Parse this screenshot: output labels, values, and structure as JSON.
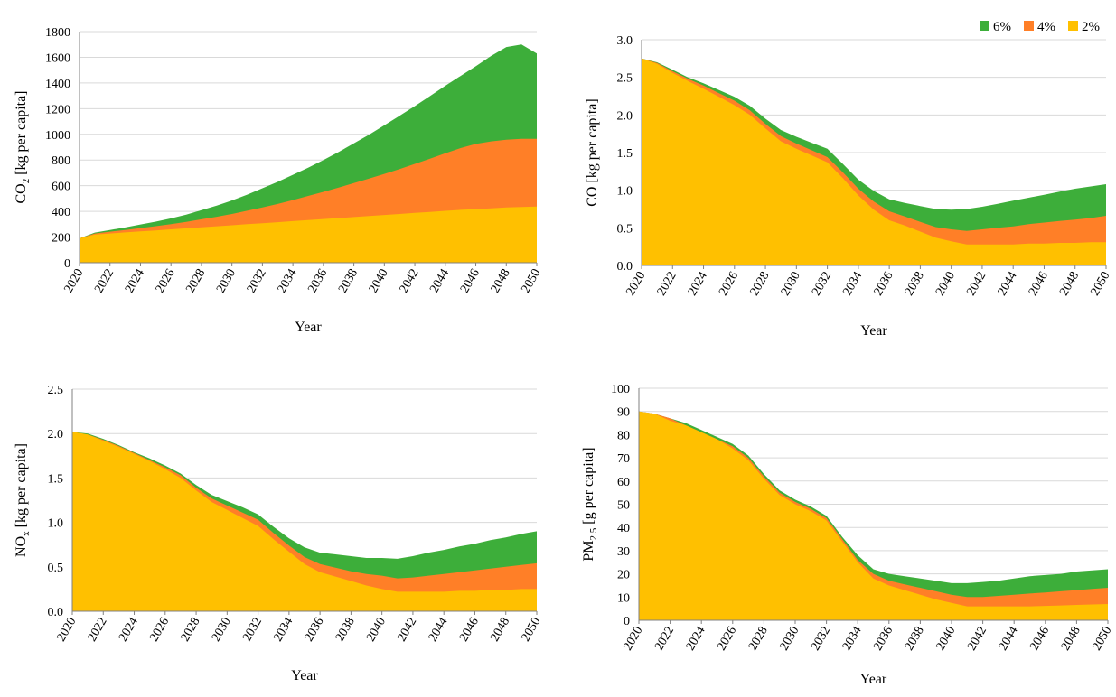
{
  "colors": {
    "s2": "#FFC000",
    "s4": "#FF7F27",
    "s6": "#3DAE3A",
    "grid": "#D9D9D9",
    "axis": "#808080"
  },
  "legend": [
    {
      "name": "6%",
      "color": "#3DAE3A"
    },
    {
      "name": "4%",
      "color": "#FF7F27"
    },
    {
      "name": "2%",
      "color": "#FFC000"
    }
  ],
  "chart_data": [
    {
      "type": "area",
      "xlabel": "Year",
      "ylabel": "CO",
      "ylabel_sub": "2",
      "ylabel_rest": " [kg per capita]",
      "x": [
        2020,
        2021,
        2022,
        2023,
        2024,
        2025,
        2026,
        2027,
        2028,
        2029,
        2030,
        2031,
        2032,
        2033,
        2034,
        2035,
        2036,
        2037,
        2038,
        2039,
        2040,
        2041,
        2042,
        2043,
        2044,
        2045,
        2046,
        2047,
        2048,
        2049,
        2050
      ],
      "xticks": [
        "2020",
        "2022",
        "2024",
        "2026",
        "2028",
        "2030",
        "2032",
        "2034",
        "2036",
        "2038",
        "2040",
        "2042",
        "2044",
        "2046",
        "2048",
        "2050"
      ],
      "ylim": [
        0,
        1800
      ],
      "yticks": [
        "0",
        "200",
        "400",
        "600",
        "800",
        "1000",
        "1200",
        "1400",
        "1600",
        "1800"
      ],
      "series": [
        {
          "name": "6%",
          "values": [
            190,
            235,
            255,
            275,
            298,
            320,
            345,
            375,
            410,
            445,
            485,
            530,
            580,
            630,
            685,
            740,
            800,
            862,
            930,
            998,
            1070,
            1145,
            1220,
            1298,
            1378,
            1455,
            1530,
            1610,
            1680,
            1700,
            1630
          ]
        },
        {
          "name": "4%",
          "values": [
            190,
            228,
            242,
            255,
            270,
            285,
            300,
            318,
            338,
            358,
            380,
            405,
            430,
            458,
            488,
            520,
            552,
            585,
            620,
            655,
            692,
            730,
            770,
            810,
            852,
            893,
            925,
            945,
            958,
            965,
            965
          ]
        },
        {
          "name": "2%",
          "values": [
            190,
            220,
            228,
            236,
            244,
            252,
            260,
            268,
            276,
            284,
            292,
            300,
            308,
            316,
            324,
            332,
            340,
            348,
            356,
            364,
            372,
            380,
            388,
            396,
            404,
            412,
            418,
            424,
            430,
            434,
            438
          ]
        }
      ]
    },
    {
      "type": "area",
      "xlabel": "Year",
      "ylabel": "CO [kg per capita]",
      "ylabel_sub": "",
      "ylabel_rest": "",
      "x": [
        2020,
        2021,
        2022,
        2023,
        2024,
        2025,
        2026,
        2027,
        2028,
        2029,
        2030,
        2031,
        2032,
        2033,
        2034,
        2035,
        2036,
        2037,
        2038,
        2039,
        2040,
        2041,
        2042,
        2043,
        2044,
        2045,
        2046,
        2047,
        2048,
        2049,
        2050
      ],
      "xticks": [
        "2020",
        "2022",
        "2024",
        "2026",
        "2028",
        "2030",
        "2032",
        "2034",
        "2036",
        "2038",
        "2040",
        "2042",
        "2044",
        "2046",
        "2048",
        "2050"
      ],
      "ylim": [
        0,
        3.0
      ],
      "yticks": [
        "0.0",
        "0.5",
        "1.0",
        "1.5",
        "2.0",
        "2.5",
        "3.0"
      ],
      "series": [
        {
          "name": "6%",
          "values": [
            2.75,
            2.7,
            2.6,
            2.5,
            2.42,
            2.33,
            2.24,
            2.12,
            1.95,
            1.8,
            1.71,
            1.63,
            1.55,
            1.35,
            1.14,
            0.99,
            0.88,
            0.83,
            0.79,
            0.75,
            0.74,
            0.75,
            0.78,
            0.82,
            0.86,
            0.9,
            0.94,
            0.98,
            1.02,
            1.05,
            1.08
          ]
        },
        {
          "name": "4%",
          "values": [
            2.75,
            2.69,
            2.58,
            2.48,
            2.39,
            2.29,
            2.19,
            2.06,
            1.88,
            1.72,
            1.62,
            1.53,
            1.44,
            1.24,
            1.02,
            0.85,
            0.72,
            0.65,
            0.58,
            0.51,
            0.48,
            0.46,
            0.48,
            0.5,
            0.52,
            0.55,
            0.57,
            0.59,
            0.61,
            0.63,
            0.66
          ]
        },
        {
          "name": "2%",
          "values": [
            2.75,
            2.68,
            2.56,
            2.45,
            2.35,
            2.24,
            2.13,
            2.0,
            1.82,
            1.65,
            1.55,
            1.46,
            1.37,
            1.16,
            0.93,
            0.74,
            0.6,
            0.53,
            0.45,
            0.37,
            0.32,
            0.28,
            0.28,
            0.28,
            0.28,
            0.29,
            0.29,
            0.3,
            0.3,
            0.31,
            0.31
          ]
        }
      ]
    },
    {
      "type": "area",
      "xlabel": "Year",
      "ylabel": "NO",
      "ylabel_sub": "x",
      "ylabel_rest": " [kg per capita]",
      "x": [
        2020,
        2021,
        2022,
        2023,
        2024,
        2025,
        2026,
        2027,
        2028,
        2029,
        2030,
        2031,
        2032,
        2033,
        2034,
        2035,
        2036,
        2037,
        2038,
        2039,
        2040,
        2041,
        2042,
        2043,
        2044,
        2045,
        2046,
        2047,
        2048,
        2049,
        2050
      ],
      "xticks": [
        "2020",
        "2022",
        "2024",
        "2026",
        "2028",
        "2030",
        "2032",
        "2034",
        "2036",
        "2038",
        "2040",
        "2042",
        "2044",
        "2046",
        "2048",
        "2050"
      ],
      "ylim": [
        0,
        2.5
      ],
      "yticks": [
        "0.0",
        "0.5",
        "1.0",
        "1.5",
        "2.0",
        "2.5"
      ],
      "series": [
        {
          "name": "6%",
          "values": [
            2.02,
            2.0,
            1.94,
            1.87,
            1.79,
            1.72,
            1.64,
            1.55,
            1.42,
            1.31,
            1.24,
            1.17,
            1.09,
            0.95,
            0.82,
            0.72,
            0.66,
            0.64,
            0.62,
            0.6,
            0.6,
            0.59,
            0.62,
            0.66,
            0.69,
            0.73,
            0.76,
            0.8,
            0.83,
            0.87,
            0.9
          ]
        },
        {
          "name": "4%",
          "values": [
            2.02,
            1.99,
            1.93,
            1.86,
            1.78,
            1.7,
            1.62,
            1.53,
            1.39,
            1.27,
            1.19,
            1.11,
            1.03,
            0.88,
            0.74,
            0.61,
            0.53,
            0.49,
            0.45,
            0.42,
            0.4,
            0.37,
            0.38,
            0.4,
            0.42,
            0.44,
            0.46,
            0.48,
            0.5,
            0.52,
            0.54
          ]
        },
        {
          "name": "2%",
          "values": [
            2.02,
            1.99,
            1.92,
            1.85,
            1.77,
            1.69,
            1.6,
            1.5,
            1.36,
            1.23,
            1.14,
            1.05,
            0.96,
            0.81,
            0.67,
            0.53,
            0.44,
            0.39,
            0.34,
            0.29,
            0.25,
            0.22,
            0.22,
            0.22,
            0.22,
            0.23,
            0.23,
            0.24,
            0.24,
            0.25,
            0.25
          ]
        }
      ]
    },
    {
      "type": "area",
      "xlabel": "Year",
      "ylabel": "PM",
      "ylabel_sub": "2.5",
      "ylabel_rest": " [g per capita]",
      "x": [
        2020,
        2021,
        2022,
        2023,
        2024,
        2025,
        2026,
        2027,
        2028,
        2029,
        2030,
        2031,
        2032,
        2033,
        2034,
        2035,
        2036,
        2037,
        2038,
        2039,
        2040,
        2041,
        2042,
        2043,
        2044,
        2045,
        2046,
        2047,
        2048,
        2049,
        2050
      ],
      "xticks": [
        "2020",
        "2022",
        "2024",
        "2026",
        "2028",
        "2030",
        "2032",
        "2034",
        "2036",
        "2038",
        "2040",
        "2042",
        "2044",
        "2046",
        "2048",
        "2050"
      ],
      "ylim": [
        0,
        100
      ],
      "yticks": [
        "0",
        "10",
        "20",
        "30",
        "40",
        "50",
        "60",
        "70",
        "80",
        "90",
        "100"
      ],
      "series": [
        {
          "name": "6%",
          "values": [
            90,
            89,
            87,
            85,
            82,
            79,
            76,
            71,
            63,
            56,
            52,
            49,
            45,
            36,
            28,
            22,
            20,
            19,
            18,
            17,
            16,
            16,
            16.5,
            17,
            18,
            19,
            19.5,
            20,
            21,
            21.5,
            22
          ]
        },
        {
          "name": "4%",
          "values": [
            90,
            89,
            87,
            84,
            81,
            78,
            75,
            70,
            62,
            55,
            51,
            48,
            44,
            35,
            26,
            20,
            17,
            15.5,
            14,
            12.5,
            11,
            10,
            10,
            10.5,
            11,
            11.5,
            12,
            12.5,
            13,
            13.5,
            14
          ]
        },
        {
          "name": "2%",
          "values": [
            90,
            89,
            86,
            84,
            81,
            78,
            74,
            69,
            61,
            54,
            50,
            47,
            43,
            34,
            25,
            18,
            15,
            13,
            11,
            9,
            7.5,
            6,
            6,
            6,
            6,
            6,
            6.2,
            6.4,
            6.6,
            6.8,
            7
          ]
        }
      ]
    }
  ]
}
